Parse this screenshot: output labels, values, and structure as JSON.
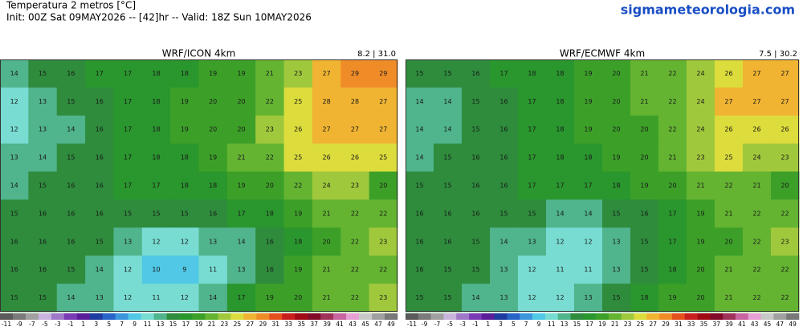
{
  "header": {
    "title": "Temperatura 2 metros [°C]",
    "subtitle": "Init: 00Z Sat 09MAY2026 -- [42]hr -- Valid: 18Z Sun 10MAY2026",
    "site": "sigmameteorologia.com"
  },
  "panels": [
    {
      "title": "WRF/ICON 4km",
      "range": "8.2 | 31.0",
      "grid": [
        [
          14,
          15,
          16,
          17,
          17,
          18,
          18,
          19,
          19,
          21,
          23,
          27,
          29,
          29
        ],
        [
          12,
          13,
          15,
          16,
          17,
          18,
          19,
          20,
          20,
          22,
          25,
          28,
          28,
          27
        ],
        [
          12,
          13,
          14,
          16,
          17,
          18,
          19,
          20,
          20,
          23,
          26,
          27,
          27,
          27
        ],
        [
          13,
          14,
          15,
          16,
          17,
          18,
          18,
          19,
          21,
          22,
          25,
          26,
          26,
          25
        ],
        [
          14,
          15,
          16,
          16,
          17,
          17,
          18,
          18,
          19,
          20,
          22,
          24,
          23,
          20
        ],
        [
          15,
          16,
          16,
          16,
          15,
          15,
          15,
          16,
          17,
          18,
          19,
          21,
          22,
          22
        ],
        [
          16,
          16,
          16,
          15,
          13,
          12,
          12,
          13,
          14,
          16,
          18,
          20,
          22,
          23
        ],
        [
          16,
          16,
          15,
          14,
          12,
          10,
          9,
          11,
          13,
          16,
          19,
          21,
          22,
          22
        ],
        [
          15,
          15,
          14,
          13,
          12,
          11,
          12,
          14,
          17,
          19,
          20,
          21,
          22,
          23
        ]
      ]
    },
    {
      "title": "WRF/ECMWF 4km",
      "range": "7.5 | 30.2",
      "grid": [
        [
          15,
          15,
          16,
          17,
          18,
          18,
          19,
          20,
          21,
          22,
          24,
          26,
          27,
          27
        ],
        [
          14,
          14,
          15,
          16,
          17,
          18,
          19,
          20,
          21,
          22,
          24,
          27,
          27,
          27
        ],
        [
          14,
          14,
          15,
          16,
          17,
          18,
          19,
          20,
          20,
          22,
          24,
          26,
          26,
          26
        ],
        [
          14,
          15,
          16,
          16,
          17,
          18,
          18,
          19,
          20,
          21,
          23,
          25,
          24,
          23
        ],
        [
          15,
          15,
          16,
          16,
          17,
          17,
          17,
          18,
          19,
          20,
          21,
          22,
          21,
          20
        ],
        [
          16,
          16,
          16,
          15,
          15,
          14,
          14,
          15,
          16,
          17,
          19,
          21,
          22,
          22
        ],
        [
          16,
          16,
          15,
          14,
          13,
          12,
          12,
          13,
          15,
          17,
          19,
          20,
          22,
          23
        ],
        [
          16,
          15,
          15,
          13,
          12,
          11,
          11,
          13,
          15,
          18,
          20,
          21,
          22,
          22
        ],
        [
          15,
          15,
          14,
          13,
          12,
          12,
          13,
          15,
          18,
          19,
          20,
          21,
          22,
          22
        ]
      ]
    }
  ],
  "colorbar": {
    "ticks": [
      -11,
      -9,
      -7,
      -5,
      -3,
      -1,
      1,
      3,
      5,
      7,
      9,
      11,
      13,
      15,
      17,
      19,
      21,
      23,
      25,
      27,
      29,
      31,
      33,
      35,
      37,
      39,
      41,
      43,
      45,
      47,
      49
    ],
    "colors": [
      "#5a5a5a",
      "#7a7a7a",
      "#a0a0a0",
      "#c8b4dc",
      "#a078c8",
      "#7a3cb4",
      "#5a1e9a",
      "#1e3ca0",
      "#2864c8",
      "#3c96dc",
      "#50c8e6",
      "#78dcd2",
      "#50b48c",
      "#2e8c3c",
      "#2a962e",
      "#3ca028",
      "#64b432",
      "#a0c83c",
      "#dcdc3c",
      "#f0b432",
      "#f08c28",
      "#e6501e",
      "#c81e1e",
      "#a00a14",
      "#820a28",
      "#a0325a",
      "#c864a0",
      "#e6a0d2",
      "#c8c8c8",
      "#a0a0a0",
      "#787878"
    ]
  }
}
